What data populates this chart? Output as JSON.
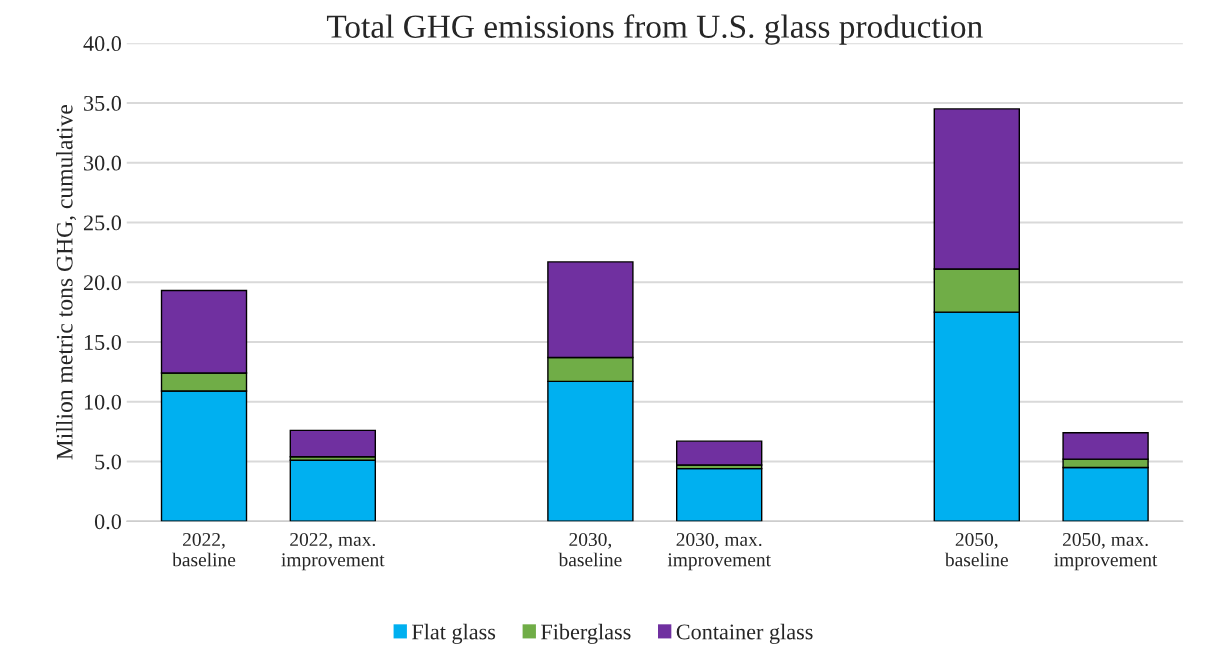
{
  "chart_data": {
    "type": "bar",
    "title": "Total GHG emissions from U.S. glass production",
    "ylabel": "Million metric tons GHG, cumulative",
    "categories": [
      "2022,\nbaseline",
      "2022, max.\nimprovement",
      null,
      "2030,\nbaseline",
      "2030, max.\nimprovement",
      null,
      "2050,\nbaseline",
      "2050, max.\nimprovement"
    ],
    "stacked": true,
    "series": [
      {
        "name": "Flat glass",
        "color": "#00b0f0",
        "values": [
          10.9,
          5.1,
          null,
          11.7,
          4.4,
          null,
          17.5,
          4.5
        ]
      },
      {
        "name": "Fiberglass",
        "color": "#70ad47",
        "values": [
          1.5,
          0.3,
          null,
          2.0,
          0.3,
          null,
          3.6,
          0.7
        ]
      },
      {
        "name": "Container glass",
        "color": "#7030a0",
        "values": [
          6.9,
          2.2,
          null,
          8.0,
          2.0,
          null,
          13.4,
          2.2
        ]
      }
    ],
    "ylim": [
      0,
      40
    ],
    "yticks": [
      {
        "value": 0,
        "label": "0.0"
      },
      {
        "value": 5,
        "label": "5.0"
      },
      {
        "value": 10,
        "label": "10.0"
      },
      {
        "value": 15,
        "label": "15.0"
      },
      {
        "value": 20,
        "label": "20.0"
      },
      {
        "value": 25,
        "label": "25.0"
      },
      {
        "value": 30,
        "label": "30.0"
      },
      {
        "value": 35,
        "label": "35.0"
      },
      {
        "value": 40,
        "label": "40.0"
      }
    ],
    "grid": "y",
    "legend": "bottom"
  }
}
